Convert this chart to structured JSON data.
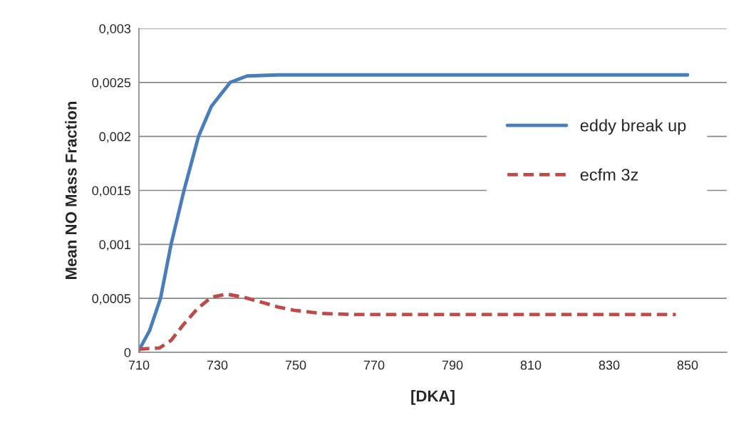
{
  "chart_data": {
    "type": "line",
    "xlabel": "[DKA]",
    "ylabel": "Mean NO Mass Fraction",
    "xlim": [
      710,
      860
    ],
    "xticks": [
      710,
      730,
      750,
      770,
      790,
      810,
      830,
      850
    ],
    "ylim": [
      0,
      0.003
    ],
    "yticks": [
      0,
      {
        "value": 0.0005,
        "label": "0,0005"
      },
      {
        "value": 0.001,
        "label": "0,001"
      },
      {
        "value": 0.0015,
        "label": "0,0015"
      },
      {
        "value": 0.002,
        "label": "0,002"
      },
      {
        "value": 0.0025,
        "label": "0,0025"
      },
      {
        "value": 0.003,
        "label": "0,003"
      }
    ],
    "grid": "y",
    "legend": "right",
    "marker": "none",
    "series": [
      {
        "name": "eddy break up",
        "color": "#4a7ebb",
        "line_style": "solid",
        "x": [
          710,
          712.7,
          715.5,
          718.2,
          721.5,
          725.2,
          728.5,
          733.3,
          737.6,
          745.5,
          850
        ],
        "values": [
          2e-05,
          0.0002,
          0.0005,
          0.001,
          0.0015,
          0.002,
          0.00228,
          0.0025,
          0.00256,
          0.00257,
          0.00257
        ]
      },
      {
        "name": "ecfm 3z",
        "color": "#be4b48",
        "line_style": "dashed",
        "x": [
          710,
          715.2,
          718.2,
          721.2,
          724.8,
          728.5,
          732.3,
          736.8,
          741.7,
          745.5,
          749.5,
          756.7,
          765.5,
          847
        ],
        "values": [
          3e-05,
          4e-05,
          0.00011,
          0.00025,
          0.0004,
          0.00051,
          0.00054,
          0.00051,
          0.00046,
          0.00042,
          0.00039,
          0.00036,
          0.00035,
          0.00035
        ]
      }
    ]
  }
}
